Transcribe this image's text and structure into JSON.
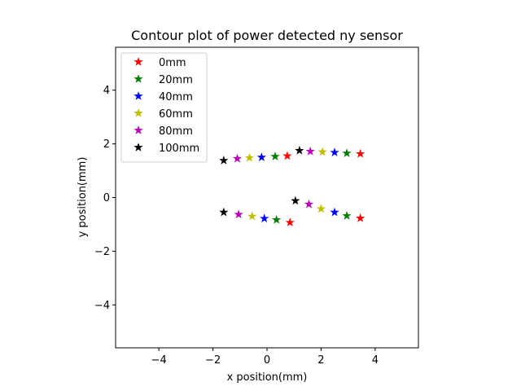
{
  "chart_data": {
    "type": "scatter",
    "title": "Contour plot of power detected ny sensor",
    "xlabel": "x position(mm)",
    "ylabel": "y position(mm)",
    "xlim": [
      -5.6,
      5.6
    ],
    "ylim": [
      -5.6,
      5.6
    ],
    "xticks": [
      -4,
      -2,
      0,
      2,
      4
    ],
    "yticks": [
      -4,
      -2,
      0,
      2,
      4
    ],
    "tick_labels_x": [
      "−4",
      "−2",
      "0",
      "2",
      "4"
    ],
    "tick_labels_y": [
      "−4",
      "−2",
      "0",
      "2",
      "4"
    ],
    "grid": false,
    "legend_position": "top-left",
    "marker": "star",
    "series": [
      {
        "name": "0mm",
        "color": "#ff0000",
        "points": [
          [
            0.75,
            1.55
          ],
          [
            3.45,
            1.63
          ],
          [
            0.85,
            -0.93
          ],
          [
            3.45,
            -0.77
          ]
        ]
      },
      {
        "name": "20mm",
        "color": "#008000",
        "points": [
          [
            0.3,
            1.53
          ],
          [
            2.95,
            1.65
          ],
          [
            0.35,
            -0.83
          ],
          [
            2.95,
            -0.68
          ]
        ]
      },
      {
        "name": "40mm",
        "color": "#0000ff",
        "points": [
          [
            -0.2,
            1.5
          ],
          [
            2.5,
            1.68
          ],
          [
            -0.1,
            -0.78
          ],
          [
            2.5,
            -0.55
          ]
        ]
      },
      {
        "name": "60mm",
        "color": "#bfbf00",
        "points": [
          [
            -0.65,
            1.48
          ],
          [
            2.05,
            1.7
          ],
          [
            -0.55,
            -0.7
          ],
          [
            2.0,
            -0.42
          ]
        ]
      },
      {
        "name": "80mm",
        "color": "#bf00bf",
        "points": [
          [
            -1.1,
            1.45
          ],
          [
            1.6,
            1.72
          ],
          [
            -1.05,
            -0.63
          ],
          [
            1.55,
            -0.25
          ]
        ]
      },
      {
        "name": "100mm",
        "color": "#000000",
        "points": [
          [
            -1.6,
            1.38
          ],
          [
            1.2,
            1.75
          ],
          [
            -1.6,
            -0.55
          ],
          [
            1.05,
            -0.12
          ]
        ]
      }
    ]
  }
}
